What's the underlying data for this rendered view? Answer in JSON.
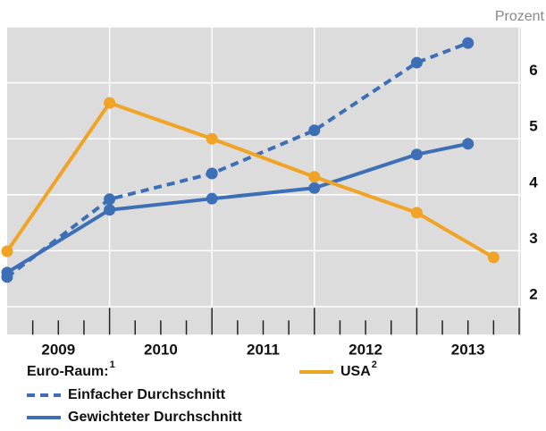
{
  "chart_data": {
    "type": "line",
    "y_unit_label": "Prozent",
    "xlim": [
      2009,
      2014
    ],
    "xticks": [
      {
        "value": 2009.5,
        "label": "2009"
      },
      {
        "value": 2010.5,
        "label": "2010"
      },
      {
        "value": 2011.5,
        "label": "2011"
      },
      {
        "value": 2012.5,
        "label": "2012"
      },
      {
        "value": 2013.5,
        "label": "2013"
      }
    ],
    "ylim": [
      1.5,
      7
    ],
    "yticks": [
      2,
      3,
      4,
      5,
      6
    ],
    "grid": true,
    "legend_group_title": "Euro-Raum:",
    "legend_group_footnote": "1",
    "series": [
      {
        "name": "Einfacher Durchschnitt",
        "color": "#3d6fb6",
        "dashed": true,
        "x": [
          2009,
          2010,
          2011,
          2012,
          2013,
          2013.5
        ],
        "values": [
          2.53,
          3.92,
          4.38,
          5.15,
          6.36,
          6.71
        ]
      },
      {
        "name": "Gewichteter Durchschnitt",
        "color": "#3d6fb6",
        "dashed": false,
        "x": [
          2009,
          2010,
          2011,
          2012,
          2013,
          2013.5
        ],
        "values": [
          2.61,
          3.73,
          3.93,
          4.12,
          4.72,
          4.91
        ]
      },
      {
        "name": "USA",
        "footnote": "2",
        "color": "#f0a324",
        "dashed": false,
        "x": [
          2009,
          2010,
          2011,
          2012,
          2013,
          2013.75
        ],
        "values": [
          2.99,
          5.64,
          5.0,
          4.32,
          3.68,
          2.88
        ]
      }
    ]
  }
}
